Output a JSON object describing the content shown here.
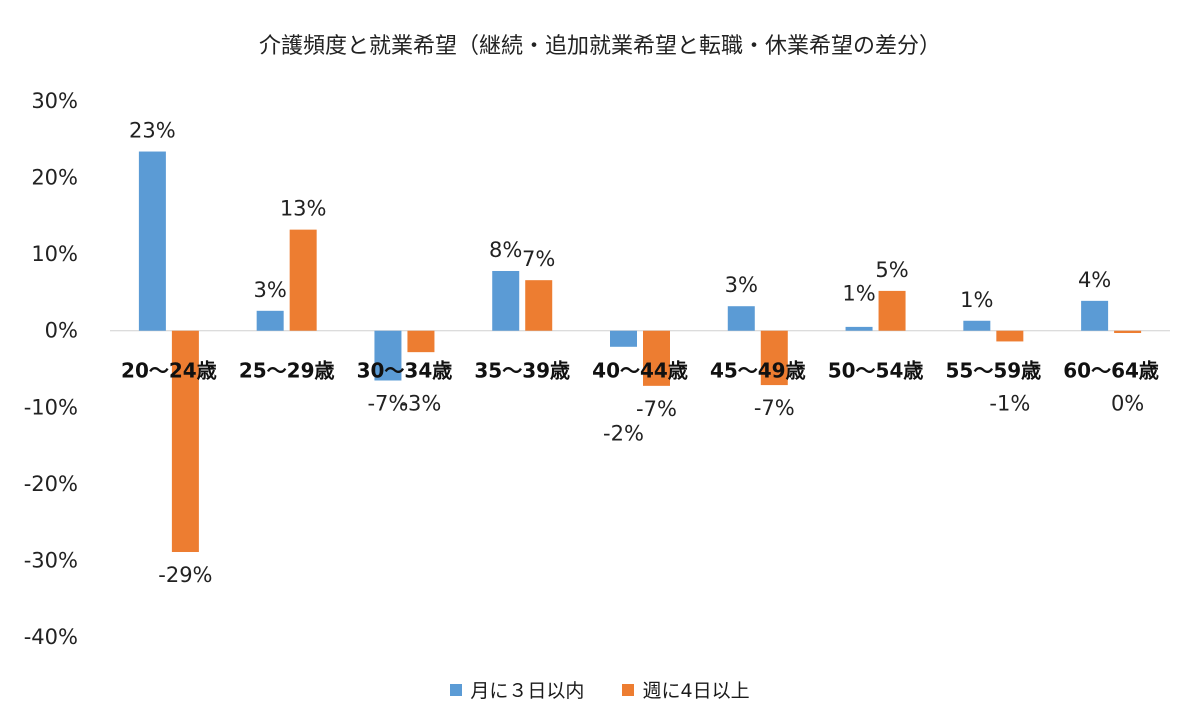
{
  "chart_data": {
    "type": "bar",
    "title": "介護頻度と就業希望（継続・追加就業希望と転職・休業希望の差分）",
    "categories": [
      "20～24歳",
      "25～29歳",
      "30～34歳",
      "35～39歳",
      "40～44歳",
      "45～49歳",
      "50～54歳",
      "55～59歳",
      "60～64歳"
    ],
    "series": [
      {
        "name": "月に３日以内",
        "color": "#5b9bd5",
        "values": [
          23.4,
          2.6,
          -6.5,
          7.8,
          -2.1,
          3.2,
          0.5,
          1.3,
          3.9
        ],
        "labels": [
          "23%",
          "3%",
          "-7%",
          "8%",
          "-2%",
          "3%",
          "1%",
          "1%",
          "4%"
        ]
      },
      {
        "name": "週に4日以上",
        "color": "#ed7d31",
        "values": [
          -28.9,
          13.2,
          -2.8,
          6.6,
          -7.2,
          -7.1,
          5.2,
          -1.4,
          -0.3
        ],
        "labels": [
          "-29%",
          "13%",
          "-3%",
          "7%",
          "-7%",
          "-7%",
          "5%",
          "-1%",
          "0%"
        ]
      }
    ],
    "yticks": [
      "30%",
      "20%",
      "10%",
      "0%",
      "-10%",
      "-20%",
      "-30%",
      "-40%"
    ],
    "ylim": [
      -40,
      30
    ],
    "xlabel": "",
    "ylabel": "",
    "legend_position": "bottom"
  }
}
